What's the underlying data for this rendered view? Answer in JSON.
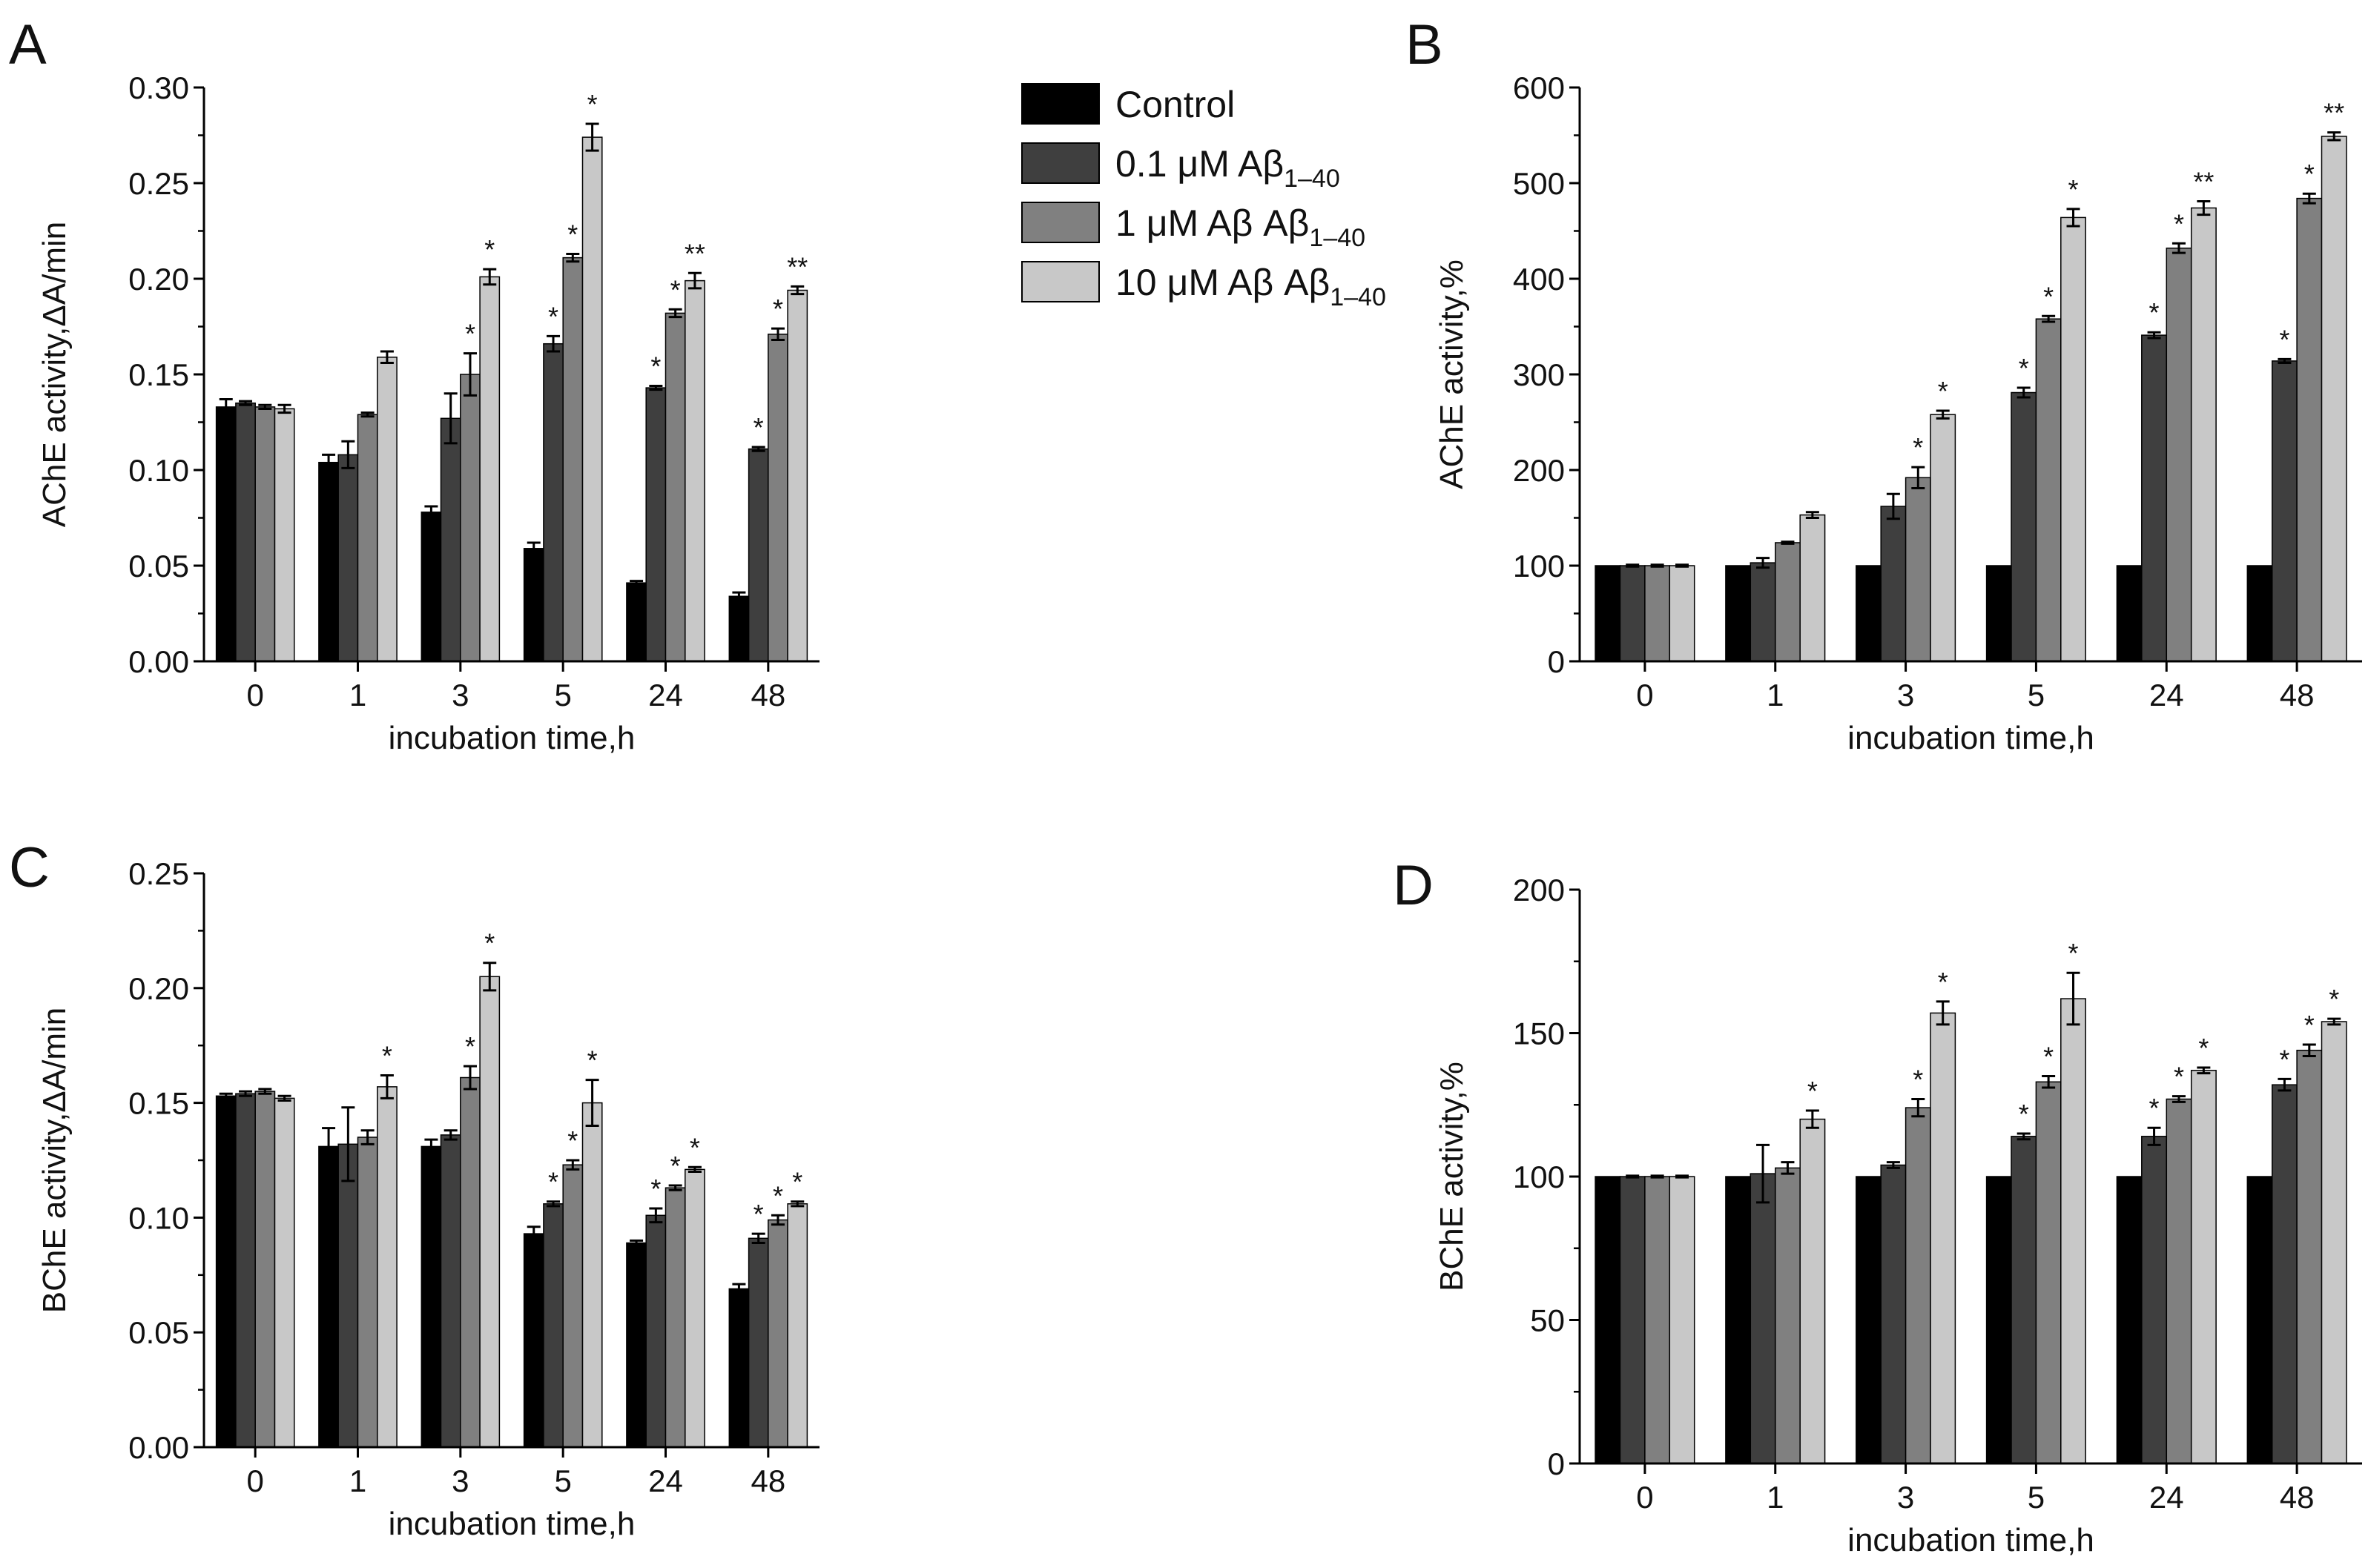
{
  "colors": {
    "Control": "#000000",
    "0.1 uM": "#3f3f3f",
    "1 uM": "#808080",
    "10 uM": "#c8c8c8",
    "axis": "#000000",
    "errorbar": "#000000"
  },
  "legend": [
    {
      "main": "Control",
      "sub": "",
      "color_key": "Control"
    },
    {
      "main": "0.1 μM Aβ",
      "sub": "1–40",
      "color_key": "0.1 uM"
    },
    {
      "main": "1 μM Aβ Aβ",
      "sub": "1–40",
      "color_key": "1 uM"
    },
    {
      "main": "10 μM Aβ Aβ",
      "sub": "1–40",
      "color_key": "10 uM"
    }
  ],
  "chart_data": [
    {
      "id": "A",
      "type": "bar",
      "panel_label": "A",
      "title": "",
      "xlabel": "incubation time,h",
      "ylabel": "AChE activity,ΔA/min",
      "categories": [
        "0",
        "1",
        "3",
        "5",
        "24",
        "48"
      ],
      "ylim": [
        0,
        0.3
      ],
      "yticks": [
        0.0,
        0.05,
        0.1,
        0.15,
        0.2,
        0.25,
        0.3
      ],
      "ytick_labels": [
        "0.00",
        "0.05",
        "0.10",
        "0.15",
        "0.20",
        "0.25",
        "0.30"
      ],
      "series": [
        {
          "name": "Control",
          "values": [
            0.133,
            0.104,
            0.078,
            0.059,
            0.041,
            0.034
          ],
          "errors": [
            0.004,
            0.004,
            0.003,
            0.003,
            0.001,
            0.002
          ],
          "labels": [
            "",
            "",
            "",
            "",
            "",
            ""
          ]
        },
        {
          "name": "0.1 μM Aβ1–40",
          "values": [
            0.135,
            0.108,
            0.127,
            0.166,
            0.143,
            0.111
          ],
          "errors": [
            0.001,
            0.007,
            0.013,
            0.004,
            0.001,
            0.001
          ],
          "labels": [
            "",
            "",
            "",
            "*",
            "*",
            "*"
          ]
        },
        {
          "name": "1 μM Aβ Aβ1–40",
          "values": [
            0.133,
            0.129,
            0.15,
            0.211,
            0.182,
            0.171
          ],
          "errors": [
            0.001,
            0.001,
            0.011,
            0.002,
            0.002,
            0.003
          ],
          "labels": [
            "",
            "",
            "*",
            "*",
            "*",
            "*"
          ]
        },
        {
          "name": "10 μM Aβ Aβ1–40",
          "values": [
            0.132,
            0.159,
            0.201,
            0.274,
            0.199,
            0.194
          ],
          "errors": [
            0.002,
            0.003,
            0.004,
            0.007,
            0.004,
            0.002
          ],
          "labels": [
            "",
            "",
            "*",
            "*",
            "**",
            "**"
          ]
        }
      ]
    },
    {
      "id": "B",
      "type": "bar",
      "panel_label": "B",
      "title": "",
      "xlabel": "incubation time,h",
      "ylabel": "AChE activity,%",
      "categories": [
        "0",
        "1",
        "3",
        "5",
        "24",
        "48"
      ],
      "ylim": [
        0,
        600
      ],
      "yticks": [
        0,
        100,
        200,
        300,
        400,
        500,
        600
      ],
      "ytick_labels": [
        "0",
        "100",
        "200",
        "300",
        "400",
        "500",
        "600"
      ],
      "series": [
        {
          "name": "Control",
          "values": [
            100,
            100,
            100,
            100,
            100,
            100
          ],
          "errors": [
            0,
            0,
            0,
            0,
            0,
            0
          ],
          "labels": [
            "",
            "",
            "",
            "",
            "",
            ""
          ]
        },
        {
          "name": "0.1 μM Aβ1–40",
          "values": [
            100,
            103,
            162,
            281,
            341,
            314
          ],
          "errors": [
            1,
            5,
            13,
            5,
            3,
            2
          ],
          "labels": [
            "",
            "",
            "",
            "*",
            "*",
            "*"
          ]
        },
        {
          "name": "1 μM Aβ Aβ1–40",
          "values": [
            100,
            124,
            192,
            358,
            432,
            484
          ],
          "errors": [
            1,
            1,
            11,
            3,
            5,
            5
          ],
          "labels": [
            "",
            "",
            "*",
            "*",
            "*",
            "*"
          ]
        },
        {
          "name": "10 μM Aβ Aβ1–40",
          "values": [
            100,
            153,
            258,
            464,
            474,
            549
          ],
          "errors": [
            1,
            3,
            4,
            9,
            7,
            4
          ],
          "labels": [
            "",
            "",
            "*",
            "*",
            "**",
            "**"
          ]
        }
      ]
    },
    {
      "id": "C",
      "type": "bar",
      "panel_label": "C",
      "title": "",
      "xlabel": "incubation time,h",
      "ylabel": "BChE activity,ΔA/min",
      "categories": [
        "0",
        "1",
        "3",
        "5",
        "24",
        "48"
      ],
      "ylim": [
        0,
        0.25
      ],
      "yticks": [
        0.0,
        0.05,
        0.1,
        0.15,
        0.2,
        0.25
      ],
      "ytick_labels": [
        "0.00",
        "0.05",
        "0.10",
        "0.15",
        "0.20",
        "0.25"
      ],
      "series": [
        {
          "name": "Control",
          "values": [
            0.153,
            0.131,
            0.131,
            0.093,
            0.089,
            0.069
          ],
          "errors": [
            0.001,
            0.008,
            0.003,
            0.003,
            0.001,
            0.002
          ],
          "labels": [
            "",
            "",
            "",
            "",
            "",
            ""
          ]
        },
        {
          "name": "0.1 μM Aβ1–40",
          "values": [
            0.154,
            0.132,
            0.136,
            0.106,
            0.101,
            0.091
          ],
          "errors": [
            0.001,
            0.016,
            0.002,
            0.001,
            0.003,
            0.002
          ],
          "labels": [
            "",
            "",
            "",
            "*",
            "*",
            "*"
          ]
        },
        {
          "name": "1 μM Aβ Aβ1–40",
          "values": [
            0.155,
            0.135,
            0.161,
            0.123,
            0.113,
            0.099
          ],
          "errors": [
            0.001,
            0.003,
            0.005,
            0.002,
            0.001,
            0.002
          ],
          "labels": [
            "",
            "",
            "*",
            "*",
            "*",
            "*"
          ]
        },
        {
          "name": "10 μM Aβ Aβ1–40",
          "values": [
            0.152,
            0.157,
            0.205,
            0.15,
            0.121,
            0.106
          ],
          "errors": [
            0.001,
            0.005,
            0.006,
            0.01,
            0.001,
            0.001
          ],
          "labels": [
            "",
            "*",
            "*",
            "*",
            "*",
            "*"
          ]
        }
      ]
    },
    {
      "id": "D",
      "type": "bar",
      "panel_label": "D",
      "title": "",
      "xlabel": "incubation time,h",
      "ylabel": "BChE activity,%",
      "categories": [
        "0",
        "1",
        "3",
        "5",
        "24",
        "48"
      ],
      "ylim": [
        0,
        200
      ],
      "yticks": [
        0,
        50,
        100,
        150,
        200
      ],
      "ytick_labels": [
        "0",
        "50",
        "100",
        "150",
        "200"
      ],
      "series": [
        {
          "name": "Control",
          "values": [
            100,
            100,
            100,
            100,
            100,
            100
          ],
          "errors": [
            0,
            0,
            0,
            0,
            0,
            0
          ],
          "labels": [
            "",
            "",
            "",
            "",
            "",
            ""
          ]
        },
        {
          "name": "0.1 μM Aβ1–40",
          "values": [
            100,
            101,
            104,
            114,
            114,
            132
          ],
          "errors": [
            0.3,
            10,
            1,
            1,
            3,
            2
          ],
          "labels": [
            "",
            "",
            "",
            "*",
            "*",
            "*"
          ]
        },
        {
          "name": "1 μM Aβ Aβ1–40",
          "values": [
            100,
            103,
            124,
            133,
            127,
            144
          ],
          "errors": [
            0.3,
            2,
            3,
            2,
            1,
            2
          ],
          "labels": [
            "",
            "",
            "*",
            "*",
            "*",
            "*"
          ]
        },
        {
          "name": "10 μM Aβ Aβ1–40",
          "values": [
            100,
            120,
            157,
            162,
            137,
            154
          ],
          "errors": [
            0.3,
            3,
            4,
            9,
            1,
            1
          ],
          "labels": [
            "",
            "*",
            "*",
            "*",
            "*",
            "*"
          ]
        }
      ]
    }
  ]
}
